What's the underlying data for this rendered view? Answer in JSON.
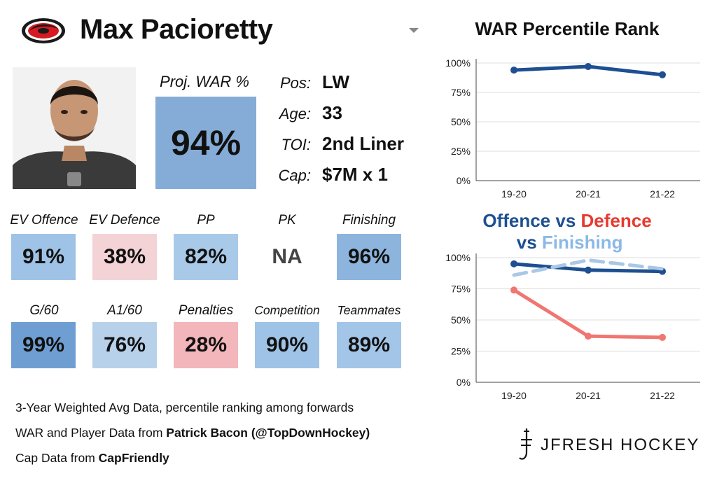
{
  "player": {
    "name": "Max Pacioretty",
    "logo_icon": "hurricanes-logo",
    "photo": "player-headshot"
  },
  "war": {
    "label": "Proj. WAR %",
    "value": "94%",
    "color": "#85acd6"
  },
  "info": [
    {
      "label": "Pos:",
      "value": "LW"
    },
    {
      "label": "Age:",
      "value": "33"
    },
    {
      "label": "TOI:",
      "value": "2nd Liner"
    },
    {
      "label": "Cap:",
      "value": "$7M x 1"
    }
  ],
  "stats_row1": [
    {
      "label": "EV Offence",
      "value": "91%",
      "color": "#9fc3e6"
    },
    {
      "label": "EV Defence",
      "value": "38%",
      "color": "#f3d3d6"
    },
    {
      "label": "PP",
      "value": "82%",
      "color": "#a9c9e8"
    },
    {
      "label": "PK",
      "value": "NA",
      "color": "#ffffff"
    },
    {
      "label": "Finishing",
      "value": "96%",
      "color": "#8db4dd"
    }
  ],
  "stats_row2": [
    {
      "label": "G/60",
      "value": "99%",
      "color": "#6f9fd2"
    },
    {
      "label": "A1/60",
      "value": "76%",
      "color": "#b7d1eb"
    },
    {
      "label": "Penalties",
      "value": "28%",
      "color": "#f2b6bb"
    },
    {
      "label": "Competition",
      "value": "90%",
      "color": "#9fc3e6"
    },
    {
      "label": "Teammates",
      "value": "89%",
      "color": "#a3c5e7"
    }
  ],
  "footer": {
    "line1": "3-Year Weighted Avg Data, percentile ranking among forwards",
    "line2_prefix": "WAR and Player Data from ",
    "line2_bold": "Patrick Bacon (@TopDownHockey)",
    "line3_prefix": "Cap Data from ",
    "line3_bold": "CapFriendly"
  },
  "brand": {
    "text": "JFRESH HOCKEY",
    "icon": "jfresh-logo-icon"
  },
  "chart_data": [
    {
      "type": "line",
      "title": "WAR Percentile Rank",
      "categories": [
        "19-20",
        "20-21",
        "21-22"
      ],
      "yticks": [
        "0%",
        "25%",
        "50%",
        "75%",
        "100%"
      ],
      "ylim": [
        0,
        100
      ],
      "series": [
        {
          "values": [
            94,
            97,
            90
          ],
          "color": "#1d4f91",
          "dashed": false
        }
      ]
    },
    {
      "type": "line",
      "title_parts": [
        {
          "text": "Offence",
          "color": "#1d4f91"
        },
        {
          "text": " vs ",
          "color": "#1d4f91"
        },
        {
          "text": "Defence",
          "color": "#e8392f"
        },
        {
          "text": " vs ",
          "color": "#1d4f91"
        },
        {
          "text": "Finishing",
          "color": "#8bb9e6"
        }
      ],
      "categories": [
        "19-20",
        "20-21",
        "21-22"
      ],
      "yticks": [
        "0%",
        "25%",
        "50%",
        "75%",
        "100%"
      ],
      "ylim": [
        0,
        100
      ],
      "series": [
        {
          "name": "Offence",
          "values": [
            95,
            90,
            89
          ],
          "color": "#1d4f91",
          "dashed": false
        },
        {
          "name": "Defence",
          "values": [
            74,
            37,
            36
          ],
          "color": "#f07671",
          "dashed": false
        },
        {
          "name": "Finishing",
          "values": [
            86,
            98,
            91
          ],
          "color": "#a9c8e6",
          "dashed": true
        }
      ]
    }
  ]
}
